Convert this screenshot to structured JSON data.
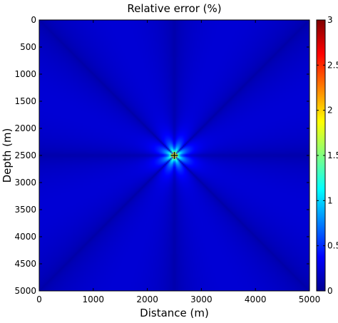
{
  "chart_data": {
    "type": "heatmap",
    "title": "Relative error (%)",
    "xlabel": "Distance (m)",
    "ylabel": "Depth (m)",
    "xlim": [
      0,
      5000
    ],
    "ylim": [
      0,
      5000
    ],
    "y_axis_inverted": true,
    "x_ticks": [
      "0",
      "1000",
      "2000",
      "3000",
      "4000",
      "5000"
    ],
    "y_ticks": [
      "0",
      "500",
      "1000",
      "1500",
      "2000",
      "2500",
      "3000",
      "3500",
      "4000",
      "4500",
      "5000"
    ],
    "colorbar": {
      "colormap": "jet",
      "range": [
        0,
        3
      ],
      "ticks": [
        "0",
        "0.5",
        "1",
        "1.5",
        "2",
        "2.5",
        "3"
      ]
    },
    "source_marker": {
      "x": 2500,
      "y": 2500,
      "symbol": "+"
    },
    "pattern": {
      "description_values": {
        "lobes": 8,
        "background_error": 0.25,
        "peak_error_near_source": 3
      }
    },
    "grid": false
  }
}
